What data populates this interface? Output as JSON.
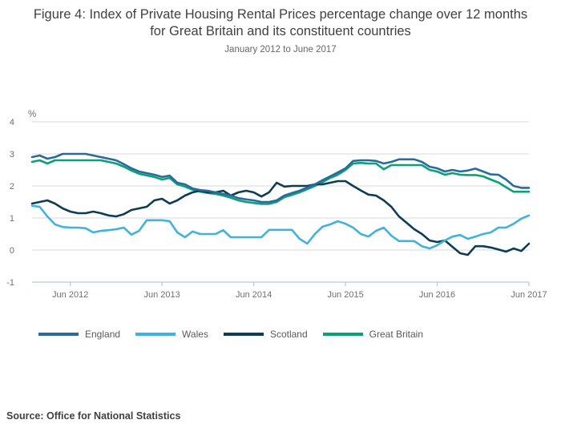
{
  "figure": {
    "title": "Figure 4: Index of Private Housing Rental Prices percentage change over 12 months for Great Britain and its constituent countries",
    "subtitle": "January 2012 to June 2017",
    "source": "Source: Office for National Statistics"
  },
  "chart_data": {
    "type": "line",
    "title": "Index of Private Housing Rental Prices percentage change over 12 months",
    "x_start": "Jan 2012",
    "x_end": "Jun 2017",
    "x_unit": "month",
    "x_tick_labels": [
      "Jun 2012",
      "Jun 2013",
      "Jun 2014",
      "Jun 2015",
      "Jun 2016",
      "Jun 2017"
    ],
    "x_tick_month_index": [
      5,
      17,
      29,
      41,
      53,
      65
    ],
    "ylabel": "%",
    "ylim": [
      -1,
      4
    ],
    "y_ticks": [
      4,
      3,
      2,
      1,
      0,
      -1
    ],
    "grid": true,
    "legend_position": "bottom",
    "grid_color": "#d9d9d9",
    "axis_color": "#b9cbd9",
    "tick_text_color": "#6f6f6f",
    "draw_order": [
      3,
      2,
      1,
      0
    ],
    "series": [
      {
        "name": "England",
        "color": "#2b6a9a",
        "values": [
          2.9,
          2.95,
          2.85,
          2.9,
          3.0,
          3.0,
          3.0,
          3.0,
          2.95,
          2.9,
          2.85,
          2.8,
          2.68,
          2.55,
          2.45,
          2.4,
          2.35,
          2.28,
          2.32,
          2.1,
          2.05,
          1.92,
          1.87,
          1.85,
          1.8,
          1.75,
          1.7,
          1.62,
          1.58,
          1.55,
          1.5,
          1.5,
          1.55,
          1.7,
          1.78,
          1.85,
          1.95,
          2.05,
          2.18,
          2.3,
          2.42,
          2.55,
          2.78,
          2.8,
          2.8,
          2.78,
          2.7,
          2.75,
          2.83,
          2.83,
          2.83,
          2.75,
          2.6,
          2.55,
          2.45,
          2.5,
          2.45,
          2.48,
          2.54,
          2.45,
          2.36,
          2.35,
          2.2,
          2.0,
          1.94,
          1.94
        ]
      },
      {
        "name": "Wales",
        "color": "#41b2de",
        "values": [
          1.38,
          1.35,
          1.05,
          0.8,
          0.72,
          0.7,
          0.7,
          0.68,
          0.55,
          0.6,
          0.62,
          0.65,
          0.7,
          0.48,
          0.6,
          0.93,
          0.93,
          0.93,
          0.9,
          0.55,
          0.4,
          0.58,
          0.5,
          0.5,
          0.5,
          0.62,
          0.4,
          0.4,
          0.4,
          0.4,
          0.4,
          0.63,
          0.63,
          0.63,
          0.63,
          0.35,
          0.2,
          0.5,
          0.73,
          0.8,
          0.9,
          0.82,
          0.7,
          0.5,
          0.42,
          0.6,
          0.7,
          0.45,
          0.28,
          0.28,
          0.28,
          0.12,
          0.05,
          0.15,
          0.3,
          0.42,
          0.47,
          0.35,
          0.42,
          0.5,
          0.55,
          0.7,
          0.7,
          0.82,
          0.98,
          1.08
        ]
      },
      {
        "name": "Scotland",
        "color": "#0f3c55",
        "values": [
          1.45,
          1.5,
          1.55,
          1.45,
          1.3,
          1.2,
          1.15,
          1.15,
          1.2,
          1.15,
          1.08,
          1.05,
          1.12,
          1.25,
          1.3,
          1.35,
          1.55,
          1.6,
          1.45,
          1.55,
          1.7,
          1.8,
          1.85,
          1.8,
          1.8,
          1.85,
          1.7,
          1.8,
          1.85,
          1.8,
          1.67,
          1.8,
          2.1,
          1.98,
          2.0,
          2.0,
          2.0,
          2.05,
          2.05,
          2.1,
          2.15,
          2.15,
          2.0,
          1.86,
          1.73,
          1.7,
          1.55,
          1.35,
          1.05,
          0.85,
          0.65,
          0.5,
          0.3,
          0.25,
          0.3,
          0.1,
          -0.1,
          -0.15,
          0.12,
          0.12,
          0.08,
          0.02,
          -0.05,
          0.05,
          -0.03,
          0.2
        ]
      },
      {
        "name": "Great Britain",
        "color": "#0aa179",
        "values": [
          2.75,
          2.8,
          2.7,
          2.8,
          2.8,
          2.8,
          2.8,
          2.8,
          2.8,
          2.8,
          2.75,
          2.7,
          2.6,
          2.48,
          2.38,
          2.33,
          2.28,
          2.2,
          2.25,
          2.05,
          1.98,
          1.88,
          1.82,
          1.78,
          1.75,
          1.7,
          1.63,
          1.55,
          1.5,
          1.47,
          1.44,
          1.44,
          1.5,
          1.65,
          1.72,
          1.8,
          1.9,
          2.0,
          2.12,
          2.25,
          2.35,
          2.5,
          2.7,
          2.72,
          2.7,
          2.7,
          2.52,
          2.65,
          2.65,
          2.65,
          2.65,
          2.65,
          2.5,
          2.45,
          2.35,
          2.4,
          2.35,
          2.34,
          2.34,
          2.3,
          2.2,
          2.11,
          1.96,
          1.82,
          1.82,
          1.82
        ]
      }
    ]
  }
}
